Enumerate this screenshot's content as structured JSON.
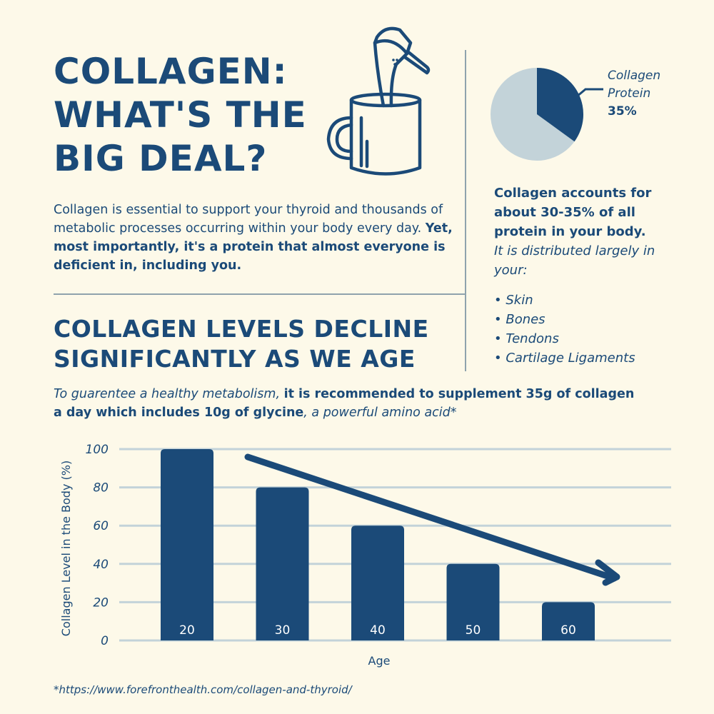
{
  "title": [
    "COLLAGEN:",
    "WHAT'S THE",
    "BIG DEAL?"
  ],
  "intro": {
    "plain": "Collagen is essential to support your thyroid and thousands of metabolic processes occurring within your body every day. ",
    "bold": "Yet, most importantly, it's a protein that almost everyone is deficient in, including you."
  },
  "pie": {
    "label_line1": "Collagen",
    "label_line2": "Protein",
    "value_label": "35%",
    "collagen_percent": 35,
    "colors": {
      "collagen": "#1b4a78",
      "other": "#c3d3d9"
    }
  },
  "side": {
    "bold": "Collagen accounts for about 30-35% of all protein in your body.",
    "italic": "It is distributed largely in your:",
    "items": [
      "• Skin",
      "• Bones",
      "• Tendons",
      "• Cartilage Ligaments"
    ]
  },
  "section_title": [
    "COLLAGEN LEVELS DECLINE",
    "SIGNIFICANTLY AS WE AGE"
  ],
  "recommendation": {
    "italic1": "To guarentee a healthy metabolism",
    "comma": ", ",
    "bold": "it is recommended to supplement 35g of collagen a day which includes 10g of glycine",
    "italic2": ", a powerful amino acid*"
  },
  "source": "*https://www.forefronthealth.com/collagen-and-thyroid/",
  "chart_data": {
    "type": "bar",
    "categories": [
      "20",
      "30",
      "40",
      "50",
      "60"
    ],
    "values": [
      100,
      80,
      60,
      40,
      20
    ],
    "xlabel": "Age",
    "ylabel": "Collagen Level in the Body (%)",
    "ylim": [
      0,
      100
    ],
    "yticks": [
      "0",
      "20",
      "40",
      "60",
      "80",
      "100"
    ],
    "grid": true,
    "trend_arrow": "decreasing",
    "colors": {
      "bar": "#1b4a78",
      "grid": "#c3d3d9",
      "bar_label": "#ffffff"
    }
  }
}
